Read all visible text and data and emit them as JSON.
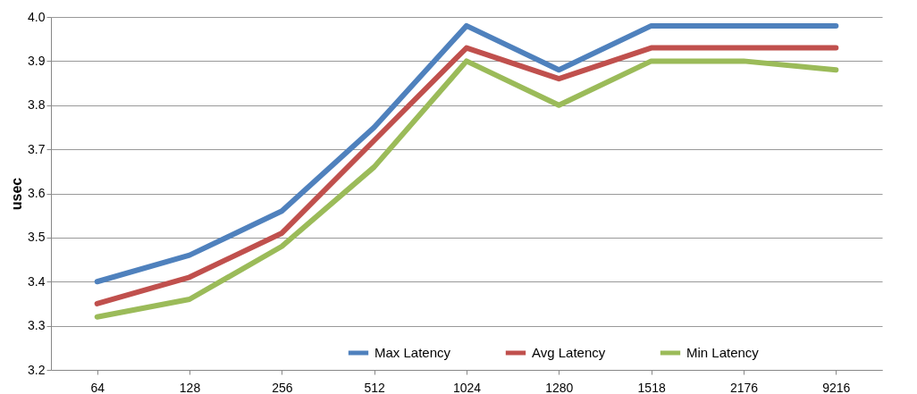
{
  "chart_data": {
    "type": "line",
    "ylabel": "usec",
    "categories": [
      "64",
      "128",
      "256",
      "512",
      "1024",
      "1280",
      "1518",
      "2176",
      "9216"
    ],
    "series": [
      {
        "name": "Max Latency",
        "color": "#4f81bd",
        "values": [
          3.4,
          3.46,
          3.56,
          3.75,
          3.98,
          3.88,
          3.98,
          3.98,
          3.98
        ]
      },
      {
        "name": "Avg Latency",
        "color": "#c0504d",
        "values": [
          3.35,
          3.41,
          3.51,
          3.72,
          3.93,
          3.86,
          3.93,
          3.93,
          3.93
        ]
      },
      {
        "name": "Min Latency",
        "color": "#9bbb59",
        "values": [
          3.32,
          3.36,
          3.48,
          3.66,
          3.9,
          3.8,
          3.9,
          3.9,
          3.88
        ]
      }
    ],
    "ylim": [
      3.2,
      4.0
    ],
    "yticks": [
      3.2,
      3.3,
      3.4,
      3.5,
      3.6,
      3.7,
      3.8,
      3.9,
      {
        "value": 4.0,
        "label": "4.0"
      }
    ],
    "grid": "y",
    "legend": "bottom",
    "marker": "none",
    "line_style": "solid"
  }
}
